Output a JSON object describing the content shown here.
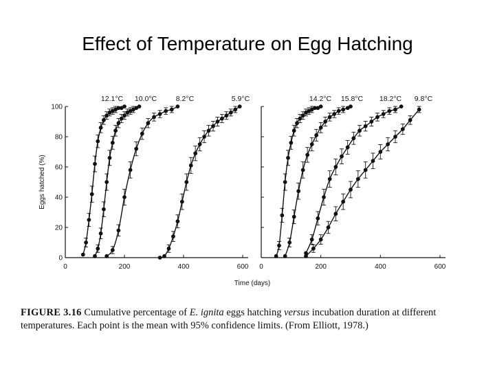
{
  "slide": {
    "title": "Effect of Temperature on Egg Hatching"
  },
  "caption": {
    "figure_label": "FIGURE 3.16",
    "text_a": " Cumulative percentage of ",
    "species": "E. ignita",
    "text_b": " eggs hatching ",
    "versus": "versus",
    "text_c": " incubation duration at different temperatures. Each point is the mean with 95% confidence limits. (From Elliott, 1978.)"
  },
  "chart_data": [
    {
      "type": "line",
      "title": "",
      "xlabel": "Time (days)",
      "ylabel": "Eggs hatched (%)",
      "xlim": [
        0,
        600
      ],
      "ylim": [
        0,
        100
      ],
      "x_ticks": [
        "0",
        "200",
        "400",
        "600"
      ],
      "y_ticks": [
        "0",
        "20",
        "40",
        "60",
        "80",
        "100"
      ],
      "grid": false,
      "legend": "curve-labels",
      "series": [
        {
          "name": "12.1°C",
          "x": [
            60,
            70,
            80,
            90,
            100,
            110,
            120,
            130,
            140,
            150,
            160,
            170,
            180,
            190,
            200
          ],
          "y": [
            2,
            10,
            25,
            42,
            62,
            77,
            86,
            91,
            94,
            96,
            97,
            98,
            99,
            99,
            100
          ]
        },
        {
          "name": "10.0°C",
          "x": [
            100,
            110,
            120,
            130,
            140,
            150,
            160,
            170,
            180,
            190,
            200,
            210,
            220,
            230,
            240,
            250
          ],
          "y": [
            1,
            6,
            16,
            32,
            50,
            66,
            76,
            84,
            89,
            92,
            94,
            96,
            97,
            98,
            99,
            100
          ]
        },
        {
          "name": "8.2°C",
          "x": [
            140,
            160,
            180,
            200,
            220,
            240,
            260,
            280,
            300,
            320,
            340,
            360,
            380
          ],
          "y": [
            1,
            5,
            18,
            40,
            58,
            72,
            82,
            89,
            93,
            95,
            97,
            98,
            100
          ]
        },
        {
          "name": "5.9°C",
          "x": [
            320,
            335,
            350,
            365,
            380,
            395,
            410,
            425,
            440,
            455,
            470,
            485,
            500,
            515,
            530,
            545,
            560,
            575,
            590
          ],
          "y": [
            0,
            1,
            6,
            14,
            24,
            37,
            50,
            61,
            69,
            75,
            80,
            84,
            87,
            90,
            92,
            94,
            96,
            98,
            100
          ]
        }
      ]
    },
    {
      "type": "line",
      "title": "",
      "xlabel": "Time (days)",
      "ylabel": "",
      "xlim": [
        0,
        600
      ],
      "ylim": [
        0,
        100
      ],
      "x_ticks": [
        "0",
        "200",
        "400",
        "600"
      ],
      "y_ticks": [],
      "grid": false,
      "legend": "curve-labels",
      "series": [
        {
          "name": "14.2°C",
          "x": [
            50,
            60,
            70,
            80,
            90,
            100,
            110,
            120,
            130,
            140,
            150,
            160,
            170,
            180,
            190,
            200
          ],
          "y": [
            1,
            8,
            28,
            50,
            66,
            76,
            84,
            89,
            92,
            94,
            96,
            97,
            98,
            99,
            99,
            100
          ]
        },
        {
          "name": "15.8°C",
          "x": [
            80,
            95,
            110,
            125,
            140,
            155,
            170,
            185,
            200,
            215,
            230,
            245,
            260,
            275,
            290,
            300
          ],
          "y": [
            1,
            10,
            27,
            44,
            58,
            68,
            75,
            81,
            86,
            90,
            93,
            95,
            97,
            98,
            99,
            100
          ]
        },
        {
          "name": "18.2°C",
          "x": [
            150,
            170,
            190,
            210,
            230,
            250,
            270,
            290,
            310,
            330,
            350,
            370,
            390,
            410,
            430,
            450,
            470
          ],
          "y": [
            3,
            12,
            26,
            40,
            52,
            60,
            67,
            73,
            79,
            84,
            87,
            90,
            93,
            95,
            97,
            98,
            100
          ]
        },
        {
          "name": "9.8°C",
          "x": [
            150,
            175,
            200,
            225,
            250,
            275,
            300,
            325,
            350,
            375,
            400,
            425,
            450,
            475,
            500,
            530
          ],
          "y": [
            1,
            6,
            12,
            20,
            29,
            37,
            45,
            52,
            58,
            64,
            70,
            75,
            80,
            85,
            91,
            98
          ]
        }
      ]
    }
  ]
}
